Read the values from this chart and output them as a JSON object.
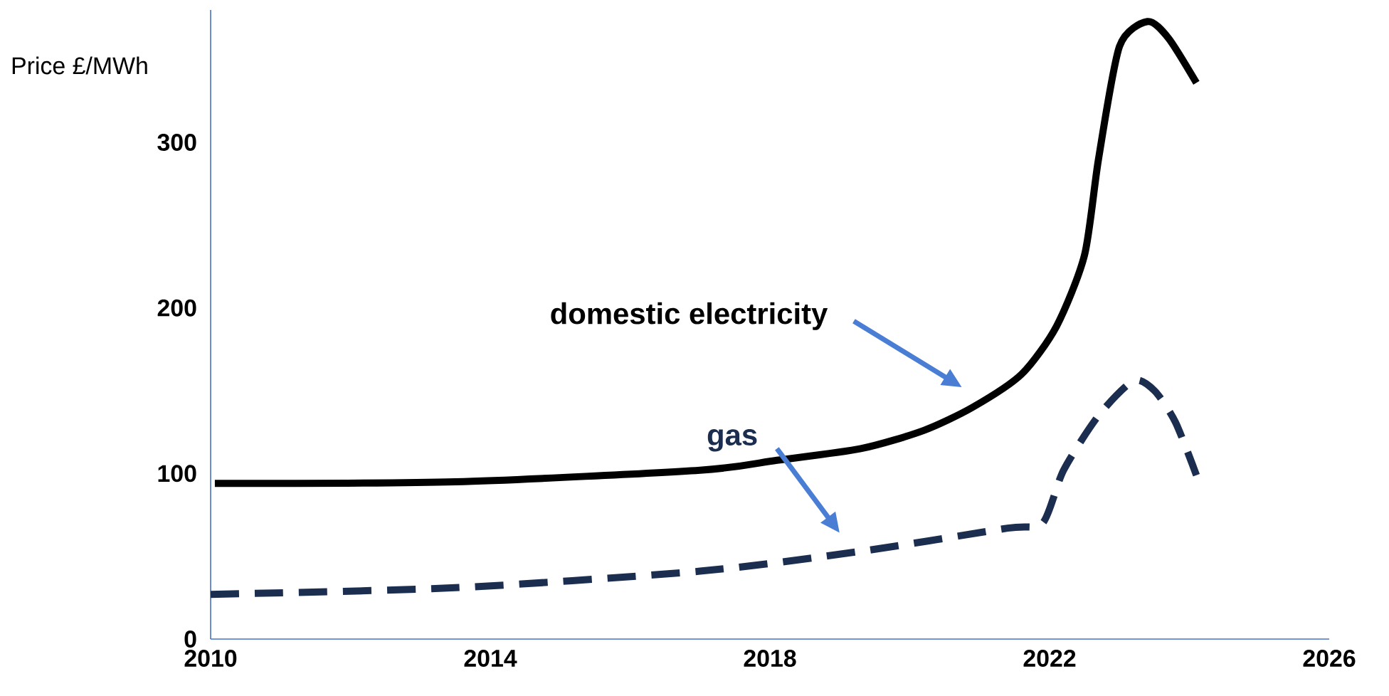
{
  "chart_data": {
    "type": "line",
    "ylabel": "Price £/MWh",
    "xlim": [
      2010,
      2026
    ],
    "xticks": [
      2010,
      2014,
      2018,
      2022,
      2026
    ],
    "ylim": [
      0,
      380
    ],
    "yticks": [
      0,
      100,
      200,
      300
    ],
    "series": [
      {
        "name": "domestic electricity",
        "color": "#000000",
        "line_style": "solid",
        "x": [
          2010.06,
          2013.5,
          2017,
          2018.1,
          2019.3,
          2020.2,
          2020.9,
          2021.6,
          2022.1,
          2022.5,
          2022.7,
          2023.0,
          2023.4,
          2023.7,
          2024.1
        ],
        "values": [
          94,
          95,
          102,
          108,
          115,
          126,
          140,
          160,
          189,
          232,
          290,
          358,
          373,
          363,
          336
        ]
      },
      {
        "name": "gas",
        "color": "#1c2e4f",
        "line_style": "dashed",
        "x": [
          2010,
          2013.5,
          2017,
          2019.3,
          2021.4,
          2021.9,
          2022.2,
          2022.7,
          2023.2,
          2023.5,
          2023.8,
          2024.1
        ],
        "values": [
          27,
          31,
          41,
          53,
          67,
          70,
          102,
          135,
          156,
          150,
          131,
          99
        ]
      }
    ]
  }
}
